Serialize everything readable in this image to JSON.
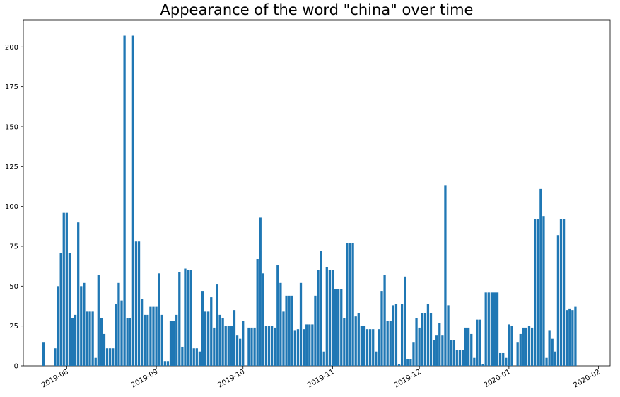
{
  "chart_data": {
    "type": "bar",
    "title": "Appearance of the word \"china\" over time",
    "xlabel": "",
    "ylabel": "",
    "x_axis": "date",
    "xlim": [
      "2019-07-17",
      "2020-02-05"
    ],
    "ylim": [
      0,
      217
    ],
    "y_ticks": [
      0,
      25,
      50,
      75,
      100,
      125,
      150,
      175,
      200
    ],
    "x_ticks": [
      "2019-08",
      "2019-09",
      "2019-10",
      "2019-11",
      "2019-12",
      "2020-01",
      "2020-02"
    ],
    "x_tick_dates": [
      "2019-08-01",
      "2019-09-01",
      "2019-10-01",
      "2019-11-01",
      "2019-12-01",
      "2020-01-01",
      "2020-02-01"
    ],
    "grid": false,
    "legend": "none",
    "bar_color": "#1f77b4",
    "dates": [
      "2019-07-24",
      "2019-07-28",
      "2019-07-29",
      "2019-07-30",
      "2019-07-31",
      "2019-08-01",
      "2019-08-02",
      "2019-08-03",
      "2019-08-04",
      "2019-08-05",
      "2019-08-06",
      "2019-08-07",
      "2019-08-08",
      "2019-08-09",
      "2019-08-10",
      "2019-08-11",
      "2019-08-12",
      "2019-08-13",
      "2019-08-14",
      "2019-08-15",
      "2019-08-16",
      "2019-08-17",
      "2019-08-18",
      "2019-08-19",
      "2019-08-20",
      "2019-08-21",
      "2019-08-22",
      "2019-08-23",
      "2019-08-24",
      "2019-08-25",
      "2019-08-26",
      "2019-08-27",
      "2019-08-28",
      "2019-08-29",
      "2019-08-30",
      "2019-08-31",
      "2019-09-01",
      "2019-09-02",
      "2019-09-03",
      "2019-09-04",
      "2019-09-05",
      "2019-09-06",
      "2019-09-07",
      "2019-09-08",
      "2019-09-09",
      "2019-09-10",
      "2019-09-11",
      "2019-09-12",
      "2019-09-13",
      "2019-09-14",
      "2019-09-15",
      "2019-09-16",
      "2019-09-17",
      "2019-09-18",
      "2019-09-19",
      "2019-09-20",
      "2019-09-21",
      "2019-09-22",
      "2019-09-23",
      "2019-09-24",
      "2019-09-25",
      "2019-09-26",
      "2019-09-27",
      "2019-09-28",
      "2019-09-29",
      "2019-09-30",
      "2019-10-01",
      "2019-10-03",
      "2019-10-04",
      "2019-10-05",
      "2019-10-06",
      "2019-10-07",
      "2019-10-08",
      "2019-10-09",
      "2019-10-10",
      "2019-10-11",
      "2019-10-12",
      "2019-10-13",
      "2019-10-14",
      "2019-10-15",
      "2019-10-16",
      "2019-10-17",
      "2019-10-18",
      "2019-10-19",
      "2019-10-20",
      "2019-10-21",
      "2019-10-22",
      "2019-10-23",
      "2019-10-24",
      "2019-10-25",
      "2019-10-26",
      "2019-10-27",
      "2019-10-28",
      "2019-10-29",
      "2019-10-30",
      "2019-10-31",
      "2019-11-01",
      "2019-11-02",
      "2019-11-03",
      "2019-11-04",
      "2019-11-05",
      "2019-11-06",
      "2019-11-07",
      "2019-11-08",
      "2019-11-09",
      "2019-11-10",
      "2019-11-11",
      "2019-11-12",
      "2019-11-13",
      "2019-11-14",
      "2019-11-15",
      "2019-11-16",
      "2019-11-17",
      "2019-11-18",
      "2019-11-19",
      "2019-11-20",
      "2019-11-21",
      "2019-11-22",
      "2019-11-23",
      "2019-11-24",
      "2019-11-25",
      "2019-11-26",
      "2019-11-27",
      "2019-11-28",
      "2019-11-29",
      "2019-11-30",
      "2019-12-01",
      "2019-12-02",
      "2019-12-03",
      "2019-12-04",
      "2019-12-05",
      "2019-12-06",
      "2019-12-07",
      "2019-12-08",
      "2019-12-09",
      "2019-12-10",
      "2019-12-11",
      "2019-12-12",
      "2019-12-13",
      "2019-12-14",
      "2019-12-15",
      "2019-12-16",
      "2019-12-17",
      "2019-12-18",
      "2019-12-19",
      "2019-12-20",
      "2019-12-21",
      "2019-12-22",
      "2019-12-23",
      "2019-12-24",
      "2019-12-25",
      "2019-12-26",
      "2019-12-27",
      "2019-12-28",
      "2019-12-29",
      "2019-12-30",
      "2019-12-31",
      "2020-01-01",
      "2020-01-02",
      "2020-01-04",
      "2020-01-05",
      "2020-01-06",
      "2020-01-07",
      "2020-01-08",
      "2020-01-09",
      "2020-01-10",
      "2020-01-11",
      "2020-01-12",
      "2020-01-13",
      "2020-01-14",
      "2020-01-15",
      "2020-01-16",
      "2020-01-17",
      "2020-01-18",
      "2020-01-19",
      "2020-01-20",
      "2020-01-21",
      "2020-01-22",
      "2020-01-23",
      "2020-01-24"
    ],
    "values": [
      15,
      11,
      50,
      71,
      96,
      96,
      71,
      30,
      32,
      90,
      50,
      52,
      34,
      34,
      34,
      5,
      57,
      30,
      20,
      11,
      11,
      11,
      39,
      52,
      41,
      207,
      30,
      30,
      207,
      78,
      78,
      42,
      32,
      32,
      37,
      37,
      37,
      58,
      32,
      3,
      3,
      28,
      28,
      32,
      59,
      12,
      61,
      60,
      60,
      11,
      11,
      9,
      47,
      34,
      34,
      43,
      24,
      51,
      32,
      30,
      25,
      25,
      25,
      35,
      19,
      17,
      28,
      24,
      24,
      24,
      67,
      93,
      58,
      25,
      25,
      25,
      24,
      63,
      52,
      34,
      44,
      44,
      44,
      22,
      23,
      52,
      23,
      26,
      26,
      26,
      44,
      60,
      72,
      9,
      62,
      60,
      60,
      48,
      48,
      48,
      30,
      77,
      77,
      77,
      31,
      33,
      25,
      25,
      23,
      23,
      23,
      9,
      23,
      47,
      57,
      28,
      28,
      38,
      39,
      1,
      39,
      56,
      4,
      4,
      15,
      30,
      24,
      33,
      33,
      39,
      33,
      16,
      19,
      27,
      19,
      113,
      38,
      16,
      16,
      10,
      10,
      10,
      24,
      24,
      20,
      5,
      29,
      29,
      1,
      46,
      46,
      46,
      46,
      46,
      8,
      8,
      5,
      26,
      25,
      15,
      20,
      24,
      24,
      25,
      24,
      92,
      92,
      111,
      94,
      5,
      22,
      17,
      9,
      82,
      92,
      92,
      35,
      36,
      35,
      37
    ]
  }
}
